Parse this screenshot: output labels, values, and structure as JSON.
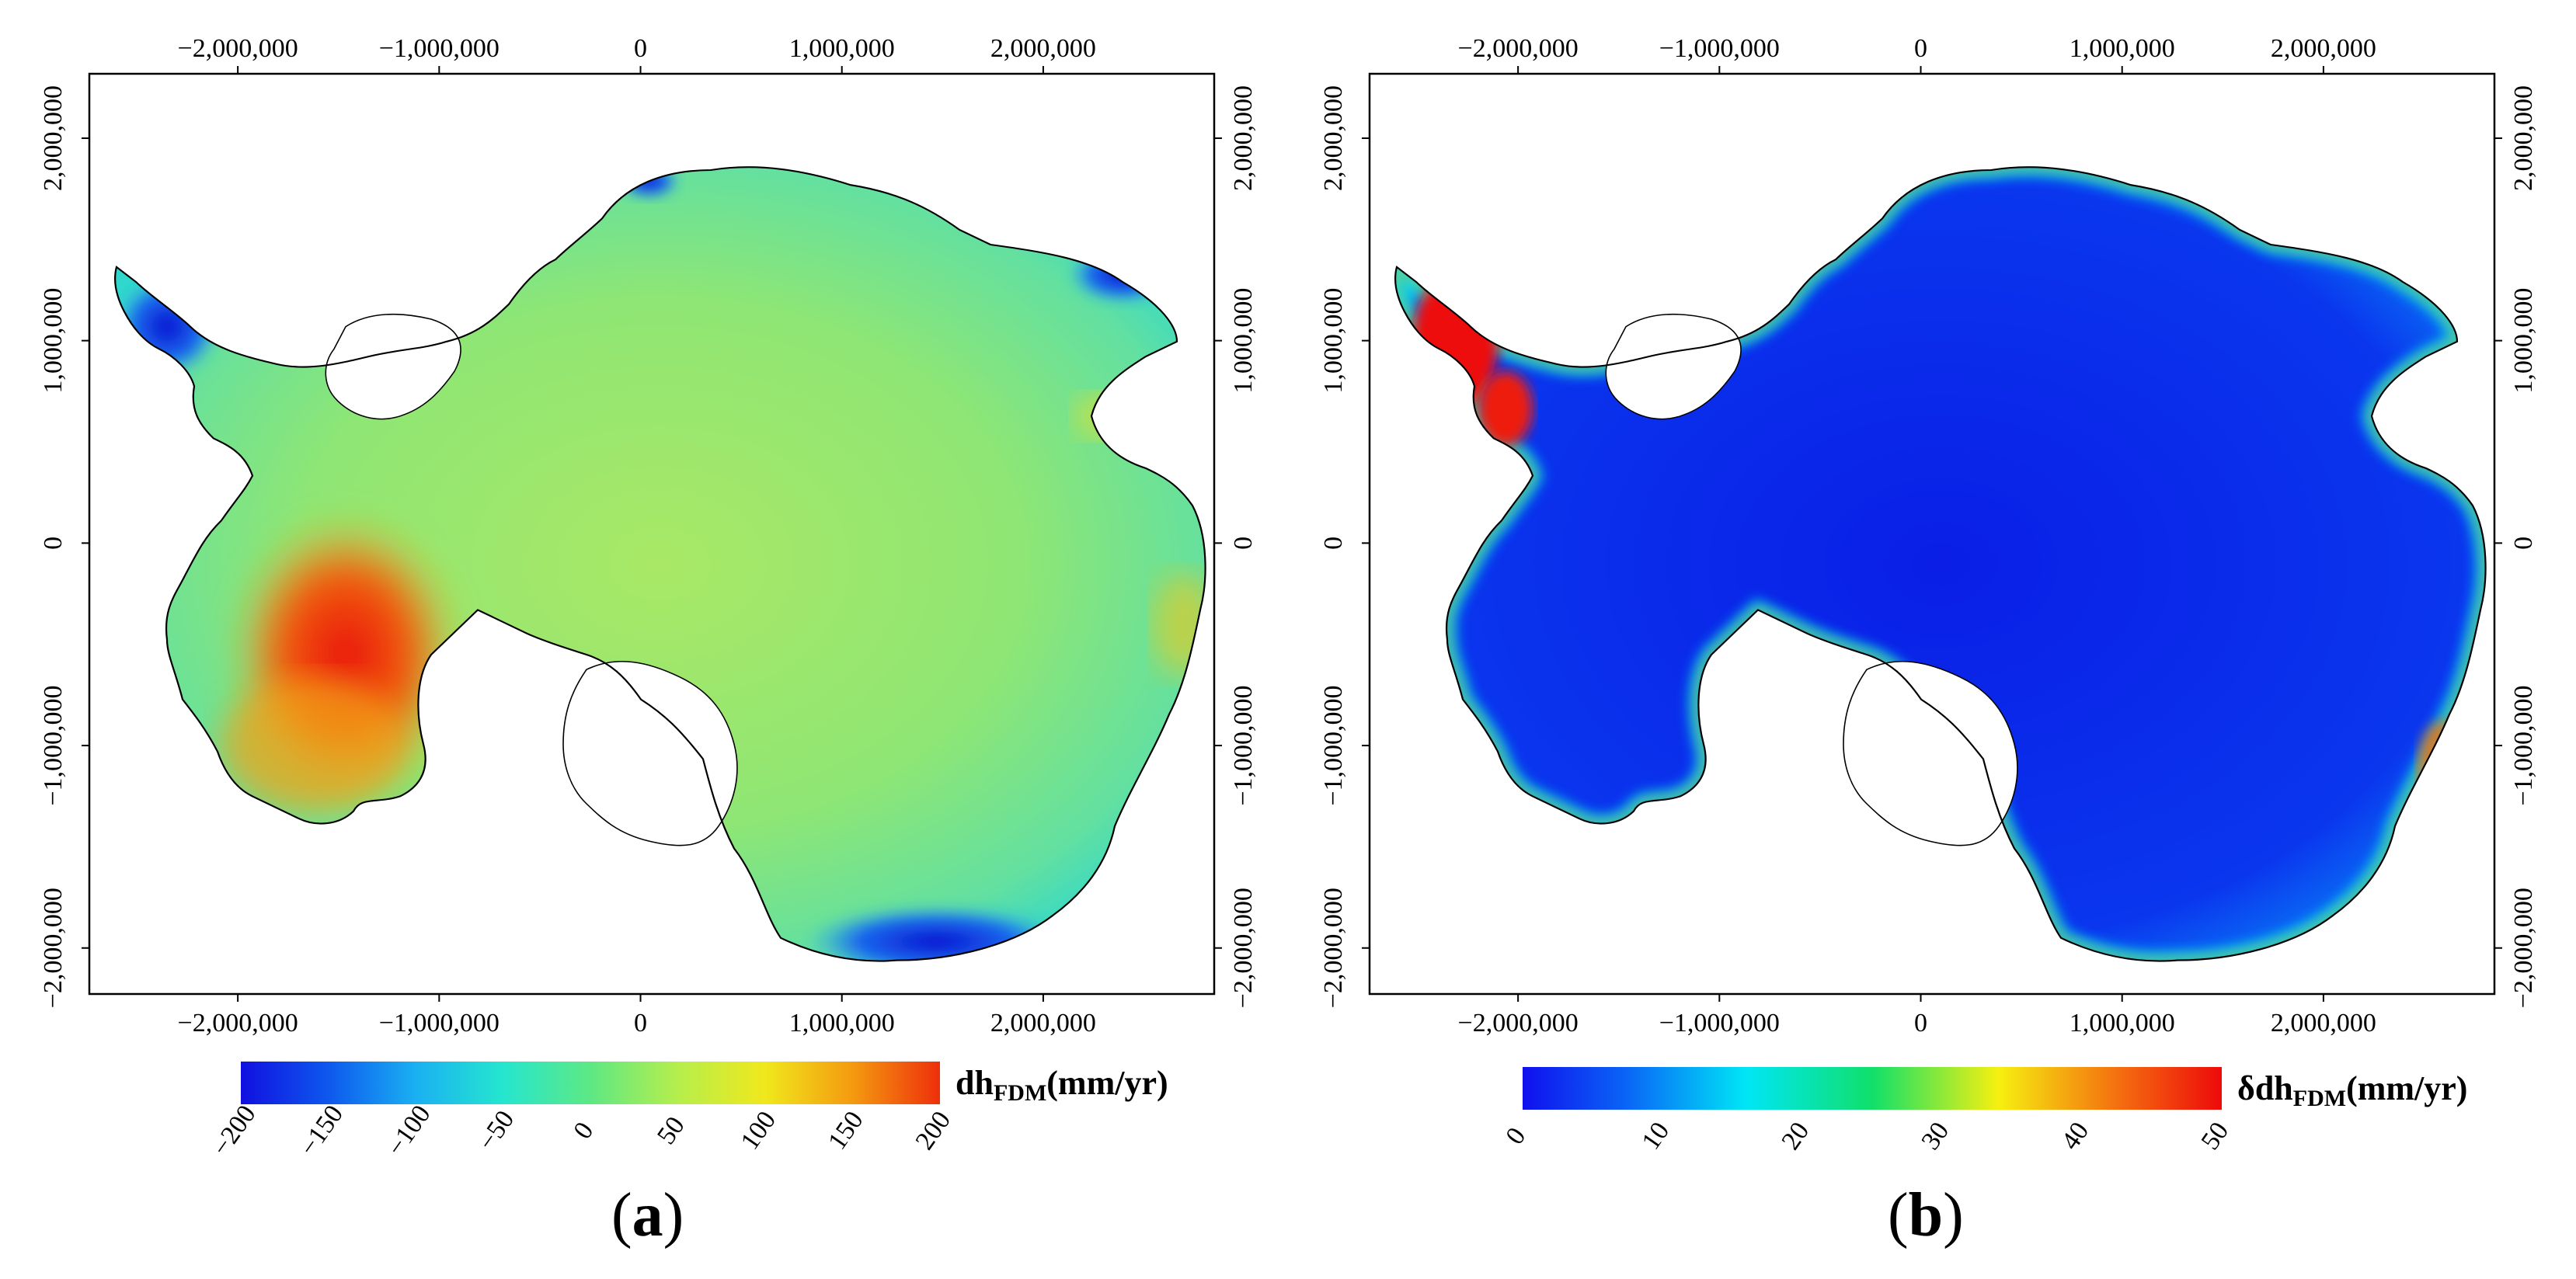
{
  "figure": {
    "panels": [
      {
        "id": "a",
        "label_open": "(",
        "label_letter": "a",
        "label_close": ")",
        "x_ticks": [
          "−2,000,000",
          "−1,000,000",
          "0",
          "1,000,000",
          "2,000,000"
        ],
        "y_ticks": [
          "2,000,000",
          "1,000,000",
          "0",
          "−1,000,000",
          "−2,000,000"
        ],
        "colorbar": {
          "title_main": "dh",
          "title_sub": "FDM",
          "title_unit": "(mm/yr)",
          "ticks": [
            "−200",
            "−150",
            "−100",
            "−50",
            "0",
            "50",
            "100",
            "150",
            "200"
          ],
          "colors": [
            "#1010e0",
            "#0e58ee",
            "#1ab0f2",
            "#25e6cf",
            "#5ee884",
            "#b6ee4c",
            "#f0e81c",
            "#f49a10",
            "#ee2f0b"
          ]
        },
        "map_style": "change"
      },
      {
        "id": "b",
        "label_open": "(",
        "label_letter": "b",
        "label_close": ")",
        "x_ticks": [
          "−2,000,000",
          "−1,000,000",
          "0",
          "1,000,000",
          "2,000,000"
        ],
        "y_ticks": [
          "2,000,000",
          "1,000,000",
          "0",
          "−1,000,000",
          "−2,000,000"
        ],
        "colorbar": {
          "title_main": "δdh",
          "title_sub": "FDM",
          "title_unit": "(mm/yr)",
          "ticks": [
            "0",
            "10",
            "20",
            "30",
            "40",
            "50"
          ],
          "colors": [
            "#1010ee",
            "#0a66f6",
            "#00e6f6",
            "#10e06a",
            "#f6f010",
            "#f47010",
            "#ee0a0a"
          ]
        },
        "map_style": "uncertainty"
      }
    ]
  }
}
